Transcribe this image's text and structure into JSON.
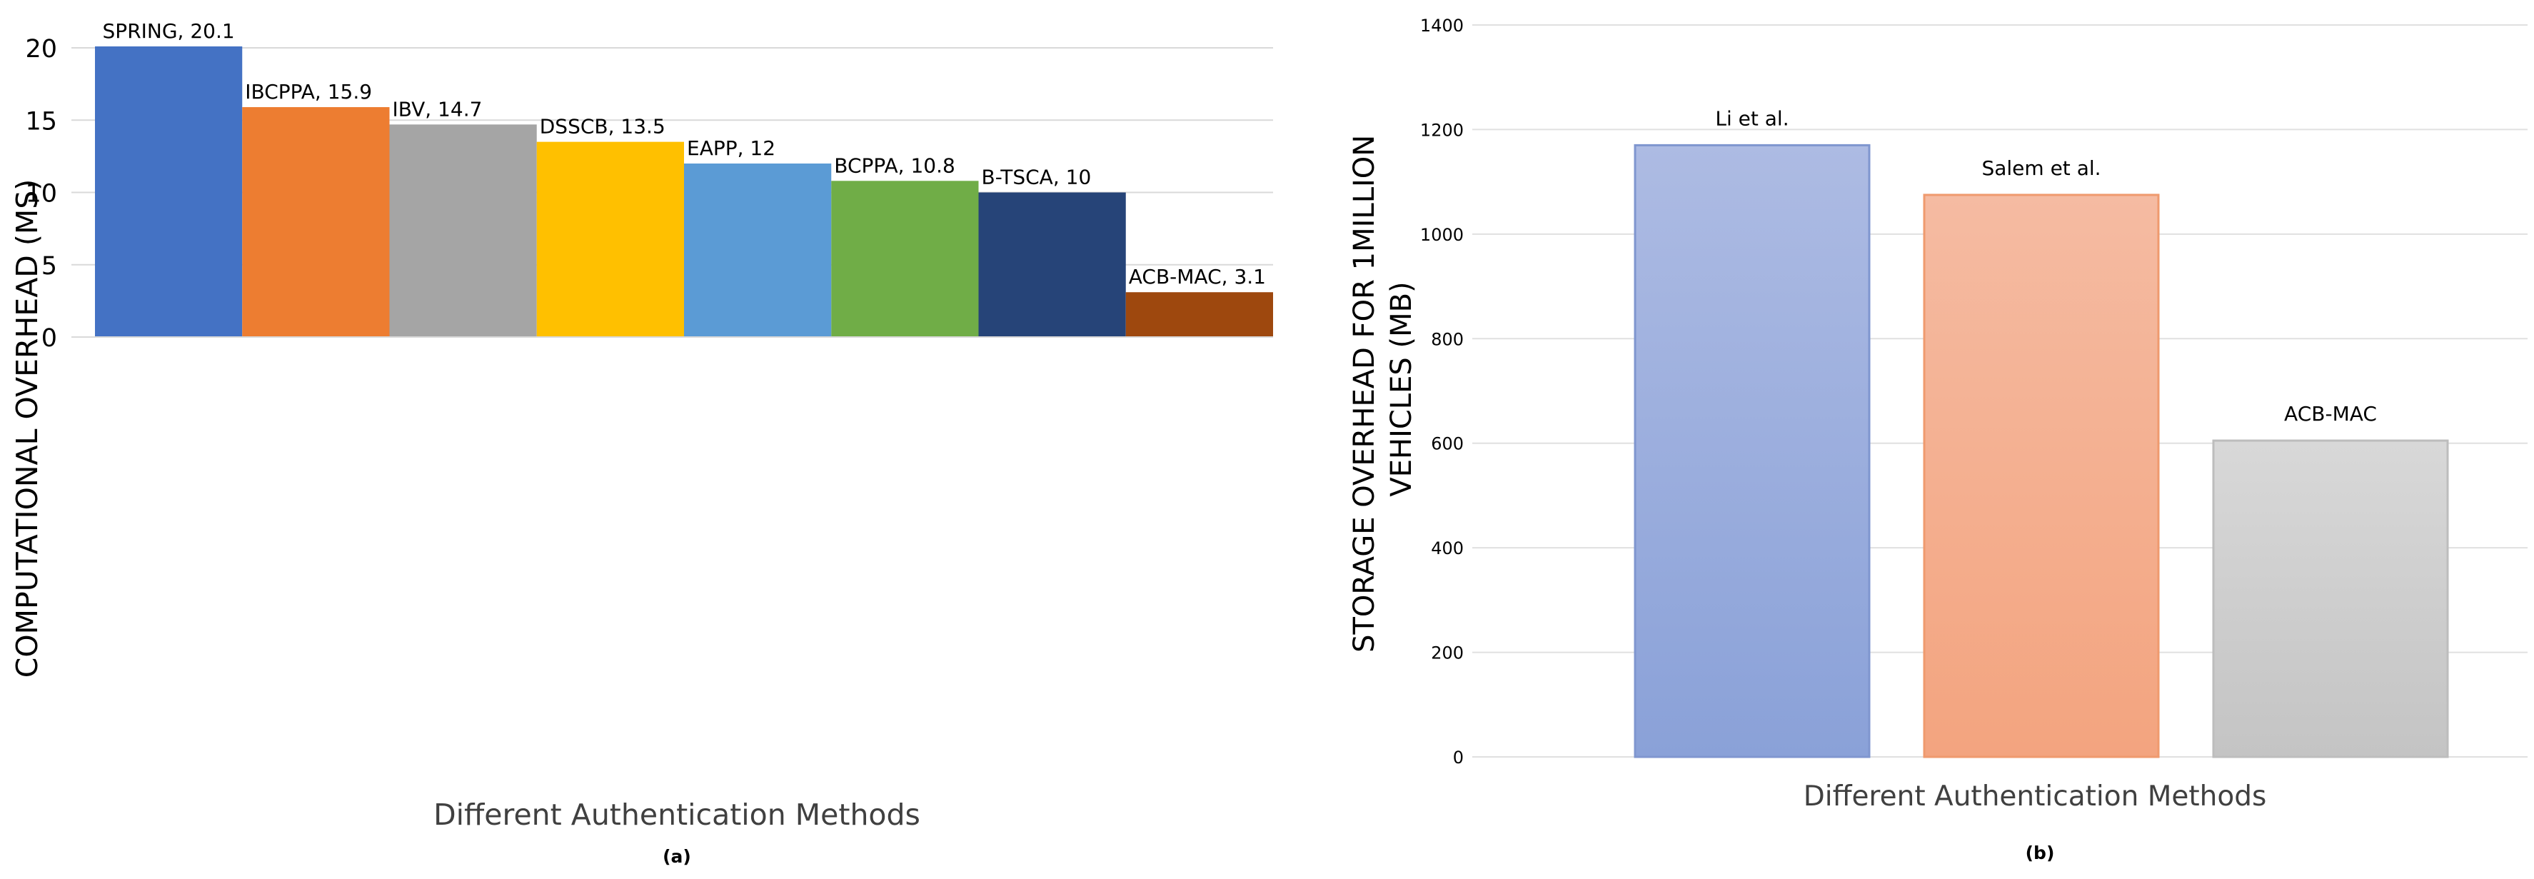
{
  "chart_data": [
    {
      "type": "bar",
      "panel_label": "(a)",
      "title": "",
      "xlabel": "Different Authentication Methods",
      "ylabel": "COMPUTATIONAL OVERHEAD (MS)",
      "ylim": [
        0,
        20
      ],
      "yticks": [
        0,
        5,
        10,
        15,
        20
      ],
      "grid": true,
      "categories": [
        "SPRING",
        "IBCPPA",
        "IBV",
        "DSSCB",
        "EAPP",
        "BCPPA",
        "B-TSCA",
        "ACB-MAC"
      ],
      "values": [
        20.1,
        15.9,
        14.7,
        13.5,
        12,
        10.8,
        10,
        3.1
      ],
      "data_labels": [
        "SPRING, 20.1",
        "IBCPPA, 15.9",
        "IBV, 14.7",
        "DSSCB, 13.5",
        "EAPP, 12",
        "BCPPA, 10.8",
        "B-TSCA, 10",
        "ACB-MAC, 3.1"
      ],
      "colors": [
        "#4472c4",
        "#ed7d31",
        "#a5a5a5",
        "#ffc000",
        "#5b9bd5",
        "#70ad47",
        "#264478",
        "#9e480e"
      ]
    },
    {
      "type": "bar",
      "panel_label": "(b)",
      "title": "",
      "xlabel": "Different Authentication Methods",
      "ylabel_lines": [
        "STORAGE OVERHEAD FOR 1MILLION",
        "VEHICLES (MB)"
      ],
      "ylim": [
        0,
        1400
      ],
      "yticks": [
        0,
        200,
        400,
        600,
        800,
        1000,
        1200,
        1400
      ],
      "grid": true,
      "categories": [
        "Li et al.",
        "Salem et al.",
        "ACB-MAC"
      ],
      "values": [
        1170,
        1075,
        605
      ],
      "data_labels": [
        "Li et al.",
        "Salem et al.",
        "ACB-MAC"
      ],
      "colors": [
        {
          "top": "#adbbe3",
          "bottom": "#8aa1d8",
          "border": "#7f96cf"
        },
        {
          "top": "#f5bba2",
          "bottom": "#f3a47f",
          "border": "#ef9a6e"
        },
        {
          "top": "#d8d8d8",
          "bottom": "#c4c4c4",
          "border": "#bdbdbd"
        }
      ]
    }
  ]
}
